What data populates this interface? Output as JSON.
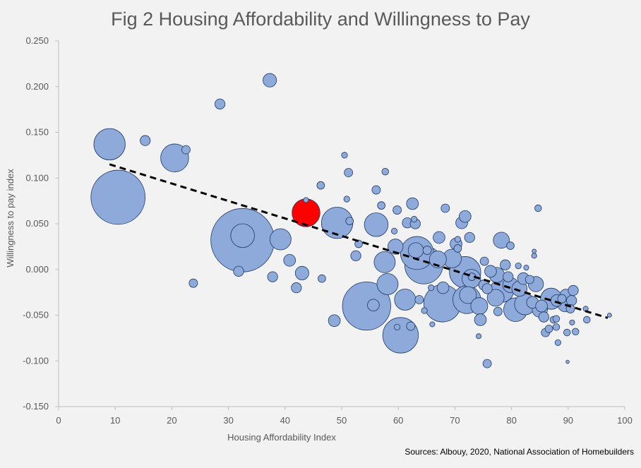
{
  "chart_data": {
    "type": "scatter",
    "title": "Fig 2 Housing Affordability and Willingness to Pay",
    "xlabel": "Housing Affordability Index",
    "ylabel": "Willingness to pay index",
    "xlim": [
      0,
      100
    ],
    "ylim": [
      -0.15,
      0.25
    ],
    "x_ticks": [
      "0",
      "10",
      "20",
      "30",
      "40",
      "50",
      "60",
      "70",
      "80",
      "90",
      "100"
    ],
    "y_ticks": [
      "-0.150",
      "-0.100",
      "-0.050",
      "0.000",
      "0.050",
      "0.100",
      "0.150",
      "0.200",
      "0.250"
    ],
    "source": "Sources: Albouy, 2020, National Association of Homebuilders",
    "bubble_color": "#8eaadb",
    "bubble_edge": "#1f3864",
    "highlight_color": "#ff0000",
    "trendline": {
      "x1": 9,
      "y1": 0.115,
      "x2": 97,
      "y2": -0.053,
      "style": "dashed",
      "color": "#000000"
    },
    "points": [
      {
        "x": 10.5,
        "y": 0.079,
        "s": 6.4
      },
      {
        "x": 9.0,
        "y": 0.137,
        "s": 3.7
      },
      {
        "x": 15.3,
        "y": 0.141,
        "s": 1.2
      },
      {
        "x": 20.5,
        "y": 0.122,
        "s": 3.3
      },
      {
        "x": 22.5,
        "y": 0.131,
        "s": 1.0
      },
      {
        "x": 23.8,
        "y": -0.015,
        "s": 1.0
      },
      {
        "x": 28.5,
        "y": 0.181,
        "s": 1.2
      },
      {
        "x": 37.3,
        "y": 0.207,
        "s": 1.6
      },
      {
        "x": 32.5,
        "y": 0.032,
        "s": 7.5
      },
      {
        "x": 32.5,
        "y": 0.037,
        "s": 2.8
      },
      {
        "x": 31.8,
        "y": -0.002,
        "s": 1.2
      },
      {
        "x": 39.2,
        "y": 0.033,
        "s": 2.5
      },
      {
        "x": 37.8,
        "y": -0.008,
        "s": 1.2
      },
      {
        "x": 40.8,
        "y": 0.01,
        "s": 1.4
      },
      {
        "x": 43.0,
        "y": -0.004,
        "s": 1.6
      },
      {
        "x": 42.0,
        "y": -0.02,
        "s": 1.2
      },
      {
        "x": 43.7,
        "y": 0.062,
        "s": 3.3,
        "highlight": true
      },
      {
        "x": 43.7,
        "y": 0.076,
        "s": 0.6
      },
      {
        "x": 46.5,
        "y": -0.01,
        "s": 0.9
      },
      {
        "x": 46.3,
        "y": 0.092,
        "s": 0.9
      },
      {
        "x": 48.7,
        "y": -0.056,
        "s": 1.4
      },
      {
        "x": 49.2,
        "y": 0.051,
        "s": 3.7
      },
      {
        "x": 50.5,
        "y": 0.125,
        "s": 0.7
      },
      {
        "x": 51.2,
        "y": 0.106,
        "s": 1.0
      },
      {
        "x": 50.9,
        "y": 0.077,
        "s": 0.7
      },
      {
        "x": 51.4,
        "y": 0.053,
        "s": 0.9
      },
      {
        "x": 52.5,
        "y": 0.015,
        "s": 1.2
      },
      {
        "x": 53.0,
        "y": 0.028,
        "s": 0.9
      },
      {
        "x": 54.4,
        "y": -0.04,
        "s": 5.7
      },
      {
        "x": 55.6,
        "y": -0.039,
        "s": 1.4
      },
      {
        "x": 56.1,
        "y": 0.049,
        "s": 2.8
      },
      {
        "x": 56.1,
        "y": 0.087,
        "s": 1.0
      },
      {
        "x": 57.0,
        "y": 0.07,
        "s": 0.9
      },
      {
        "x": 57.7,
        "y": 0.107,
        "s": 0.8
      },
      {
        "x": 57.6,
        "y": 0.008,
        "s": 2.5
      },
      {
        "x": 58.1,
        "y": -0.016,
        "s": 2.5
      },
      {
        "x": 59.5,
        "y": 0.025,
        "s": 1.8
      },
      {
        "x": 59.3,
        "y": 0.042,
        "s": 0.7
      },
      {
        "x": 59.8,
        "y": 0.065,
        "s": 1.0
      },
      {
        "x": 60.4,
        "y": -0.072,
        "s": 4.2
      },
      {
        "x": 59.8,
        "y": -0.063,
        "s": 0.7
      },
      {
        "x": 61.2,
        "y": -0.033,
        "s": 2.5
      },
      {
        "x": 62.2,
        "y": -0.062,
        "s": 1.0
      },
      {
        "x": 62.5,
        "y": 0.072,
        "s": 1.4
      },
      {
        "x": 61.6,
        "y": 0.051,
        "s": 1.2
      },
      {
        "x": 63.0,
        "y": 0.05,
        "s": 1.2
      },
      {
        "x": 62.8,
        "y": 0.055,
        "s": 0.7
      },
      {
        "x": 63.3,
        "y": 0.018,
        "s": 3.9
      },
      {
        "x": 63.1,
        "y": 0.021,
        "s": 1.8
      },
      {
        "x": 63.7,
        "y": -0.033,
        "s": 1.0
      },
      {
        "x": 64.5,
        "y": 0.005,
        "s": 4.5
      },
      {
        "x": 64.6,
        "y": -0.045,
        "s": 0.7
      },
      {
        "x": 65.1,
        "y": 0.021,
        "s": 1.0
      },
      {
        "x": 65.8,
        "y": -0.02,
        "s": 0.7
      },
      {
        "x": 66.0,
        "y": -0.06,
        "s": 0.6
      },
      {
        "x": 67.0,
        "y": 0.011,
        "s": 2.0
      },
      {
        "x": 67.2,
        "y": 0.035,
        "s": 1.4
      },
      {
        "x": 67.8,
        "y": -0.037,
        "s": 4.4
      },
      {
        "x": 67.9,
        "y": -0.02,
        "s": 1.4
      },
      {
        "x": 68.3,
        "y": 0.067,
        "s": 1.0
      },
      {
        "x": 69.5,
        "y": 0.012,
        "s": 2.2
      },
      {
        "x": 70.2,
        "y": 0.028,
        "s": 1.4
      },
      {
        "x": 70.5,
        "y": 0.023,
        "s": 0.9
      },
      {
        "x": 70.5,
        "y": 0.033,
        "s": 0.7
      },
      {
        "x": 71.2,
        "y": 0.051,
        "s": 1.4
      },
      {
        "x": 71.8,
        "y": 0.058,
        "s": 1.4
      },
      {
        "x": 71.8,
        "y": -0.003,
        "s": 3.7
      },
      {
        "x": 72.1,
        "y": -0.033,
        "s": 3.3
      },
      {
        "x": 72.3,
        "y": -0.028,
        "s": 2.0
      },
      {
        "x": 72.6,
        "y": 0.035,
        "s": 1.2
      },
      {
        "x": 72.9,
        "y": -0.01,
        "s": 2.2
      },
      {
        "x": 73.0,
        "y": -0.008,
        "s": 0.9
      },
      {
        "x": 74.3,
        "y": -0.04,
        "s": 2.0
      },
      {
        "x": 74.5,
        "y": -0.055,
        "s": 1.4
      },
      {
        "x": 74.2,
        "y": -0.073,
        "s": 0.6
      },
      {
        "x": 75.1,
        "y": -0.017,
        "s": 1.2
      },
      {
        "x": 75.2,
        "y": 0.009,
        "s": 1.0
      },
      {
        "x": 75.7,
        "y": -0.021,
        "s": 1.2
      },
      {
        "x": 75.7,
        "y": -0.103,
        "s": 1.0
      },
      {
        "x": 76.3,
        "y": -0.002,
        "s": 1.4
      },
      {
        "x": 77.2,
        "y": -0.031,
        "s": 2.0
      },
      {
        "x": 77.4,
        "y": -0.006,
        "s": 1.8
      },
      {
        "x": 77.6,
        "y": -0.046,
        "s": 1.0
      },
      {
        "x": 78.2,
        "y": 0.032,
        "s": 1.9
      },
      {
        "x": 78.3,
        "y": -0.023,
        "s": 2.8
      },
      {
        "x": 78.9,
        "y": 0.005,
        "s": 1.2
      },
      {
        "x": 79.4,
        "y": -0.008,
        "s": 1.2
      },
      {
        "x": 79.8,
        "y": 0.026,
        "s": 0.9
      },
      {
        "x": 79.8,
        "y": -0.017,
        "s": 1.8
      },
      {
        "x": 80.7,
        "y": -0.044,
        "s": 2.8
      },
      {
        "x": 81.2,
        "y": 0.004,
        "s": 0.7
      },
      {
        "x": 81.4,
        "y": -0.021,
        "s": 1.8
      },
      {
        "x": 82.1,
        "y": -0.01,
        "s": 1.4
      },
      {
        "x": 82.4,
        "y": -0.038,
        "s": 2.5
      },
      {
        "x": 82.6,
        "y": 0.002,
        "s": 0.6
      },
      {
        "x": 83.2,
        "y": -0.011,
        "s": 1.0
      },
      {
        "x": 83.7,
        "y": -0.036,
        "s": 1.4
      },
      {
        "x": 84.0,
        "y": 0.015,
        "s": 0.6
      },
      {
        "x": 84.0,
        "y": 0.02,
        "s": 0.5
      },
      {
        "x": 84.3,
        "y": -0.016,
        "s": 1.8
      },
      {
        "x": 84.7,
        "y": 0.067,
        "s": 0.8
      },
      {
        "x": 85.0,
        "y": -0.044,
        "s": 1.8
      },
      {
        "x": 85.3,
        "y": -0.04,
        "s": 1.4
      },
      {
        "x": 85.7,
        "y": -0.052,
        "s": 1.2
      },
      {
        "x": 86.0,
        "y": -0.069,
        "s": 1.0
      },
      {
        "x": 86.6,
        "y": -0.065,
        "s": 0.9
      },
      {
        "x": 87.0,
        "y": -0.032,
        "s": 2.5
      },
      {
        "x": 87.4,
        "y": -0.055,
        "s": 0.8
      },
      {
        "x": 87.9,
        "y": -0.063,
        "s": 0.8
      },
      {
        "x": 87.9,
        "y": -0.054,
        "s": 0.8
      },
      {
        "x": 88.0,
        "y": -0.034,
        "s": 1.4
      },
      {
        "x": 88.2,
        "y": -0.08,
        "s": 0.7
      },
      {
        "x": 88.9,
        "y": -0.032,
        "s": 1.0
      },
      {
        "x": 89.5,
        "y": -0.038,
        "s": 1.8
      },
      {
        "x": 89.6,
        "y": -0.028,
        "s": 1.4
      },
      {
        "x": 89.8,
        "y": -0.069,
        "s": 0.8
      },
      {
        "x": 89.9,
        "y": -0.101,
        "s": 0.4
      },
      {
        "x": 90.4,
        "y": -0.043,
        "s": 1.0
      },
      {
        "x": 90.6,
        "y": -0.034,
        "s": 1.2
      },
      {
        "x": 90.7,
        "y": -0.058,
        "s": 0.6
      },
      {
        "x": 90.9,
        "y": -0.023,
        "s": 1.2
      },
      {
        "x": 91.3,
        "y": -0.068,
        "s": 0.8
      },
      {
        "x": 93.1,
        "y": -0.043,
        "s": 0.6
      },
      {
        "x": 93.3,
        "y": -0.055,
        "s": 0.8
      },
      {
        "x": 97.3,
        "y": -0.05,
        "s": 0.5
      }
    ]
  }
}
